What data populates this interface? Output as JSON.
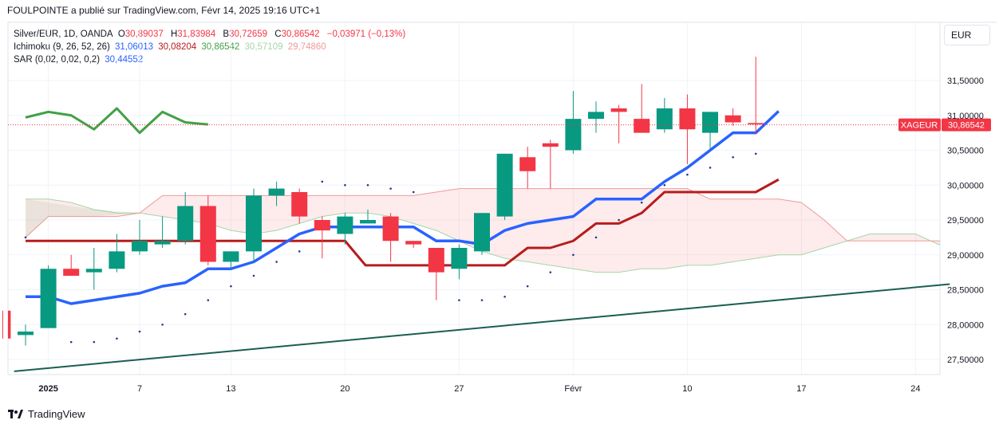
{
  "header": {
    "text": "FOULPOINTE a publié sur TradingView.com, Févr 14, 2025 19:16 UTC+1"
  },
  "legend": {
    "symbol": "Silver/EUR, 1D, OANDA",
    "o_label": "O",
    "o": "30,89037",
    "h_label": "H",
    "h": "31,83984",
    "b_label": "B",
    "b": "30,72659",
    "c_label": "C",
    "c": "30,86542",
    "change": "−0,03971 (−0,13%)",
    "ichimoku_label": "Ichimoku (9, 26, 52, 26)",
    "ichimoku_values": [
      "31,06013",
      "30,08204",
      "30,86542",
      "30,57109",
      "29,74860"
    ],
    "sar_label": "SAR (0,02, 0,02, 0,2)",
    "sar_value": "30,44552"
  },
  "currency": "EUR",
  "brand": "TradingView",
  "colors": {
    "up": "#089981",
    "down": "#f23645",
    "tenkan": "#2962ff",
    "kijun": "#b71c1c",
    "chikou": "#43a047",
    "span_a": "#a5d6a7",
    "span_b": "#ef9a9a",
    "trendline": "#1b5e50",
    "sar": "#1e3a8a"
  },
  "chart_data": {
    "type": "candlestick",
    "symbol": "Silver/EUR",
    "interval": "1D",
    "y_ticks": [
      "27,50000",
      "28,00000",
      "28,50000",
      "29,00000",
      "29,50000",
      "30,00000",
      "30,50000",
      "31,00000",
      "31,50000"
    ],
    "y_tick_values": [
      27.5,
      28.0,
      28.5,
      29.0,
      29.5,
      30.0,
      30.5,
      31.0,
      31.5
    ],
    "x_ticks": [
      {
        "label": "2025",
        "i": 1
      },
      {
        "label": "7",
        "i": 5
      },
      {
        "label": "13",
        "i": 9
      },
      {
        "label": "20",
        "i": 14
      },
      {
        "label": "27",
        "i": 19
      },
      {
        "label": "Févr",
        "i": 24
      },
      {
        "label": "10",
        "i": 29
      },
      {
        "label": "17",
        "i": 34
      },
      {
        "label": "24",
        "i": 39
      }
    ],
    "ylim": [
      27.25,
      32.0
    ],
    "last_price_label": "XAGEUR",
    "last_price": "30,86542",
    "last_price_value": 30.865,
    "candles": [
      {
        "o": 28.2,
        "h": 28.2,
        "l": 27.8,
        "c": 27.8
      },
      {
        "o": 27.85,
        "h": 28.0,
        "l": 27.7,
        "c": 27.9
      },
      {
        "o": 27.95,
        "h": 28.85,
        "l": 27.95,
        "c": 28.8
      },
      {
        "o": 28.8,
        "h": 29.0,
        "l": 28.7,
        "c": 28.7
      },
      {
        "o": 28.75,
        "h": 29.1,
        "l": 28.5,
        "c": 28.8
      },
      {
        "o": 28.8,
        "h": 29.3,
        "l": 28.75,
        "c": 29.05
      },
      {
        "o": 29.05,
        "h": 29.5,
        "l": 29.0,
        "c": 29.2
      },
      {
        "o": 29.15,
        "h": 29.55,
        "l": 29.1,
        "c": 29.2
      },
      {
        "o": 29.2,
        "h": 29.9,
        "l": 29.15,
        "c": 29.7
      },
      {
        "o": 29.7,
        "h": 29.85,
        "l": 28.85,
        "c": 28.9
      },
      {
        "o": 28.9,
        "h": 29.05,
        "l": 28.8,
        "c": 29.05
      },
      {
        "o": 29.05,
        "h": 29.95,
        "l": 28.9,
        "c": 29.85
      },
      {
        "o": 29.85,
        "h": 30.05,
        "l": 29.7,
        "c": 29.95
      },
      {
        "o": 29.9,
        "h": 29.95,
        "l": 29.45,
        "c": 29.55
      },
      {
        "o": 29.5,
        "h": 29.55,
        "l": 28.95,
        "c": 29.35
      },
      {
        "o": 29.3,
        "h": 29.6,
        "l": 29.15,
        "c": 29.55
      },
      {
        "o": 29.45,
        "h": 29.65,
        "l": 29.45,
        "c": 29.5
      },
      {
        "o": 29.55,
        "h": 29.6,
        "l": 28.9,
        "c": 29.2
      },
      {
        "o": 29.2,
        "h": 29.2,
        "l": 29.1,
        "c": 29.15
      },
      {
        "o": 29.1,
        "h": 29.1,
        "l": 28.35,
        "c": 28.75
      },
      {
        "o": 28.8,
        "h": 29.15,
        "l": 28.65,
        "c": 29.1
      },
      {
        "o": 29.05,
        "h": 29.6,
        "l": 29.0,
        "c": 29.6
      },
      {
        "o": 29.55,
        "h": 30.45,
        "l": 29.5,
        "c": 30.45
      },
      {
        "o": 30.4,
        "h": 30.55,
        "l": 29.95,
        "c": 30.2
      },
      {
        "o": 30.6,
        "h": 30.65,
        "l": 29.95,
        "c": 30.55
      },
      {
        "o": 30.5,
        "h": 31.35,
        "l": 30.45,
        "c": 30.95
      },
      {
        "o": 30.95,
        "h": 31.2,
        "l": 30.75,
        "c": 31.05
      },
      {
        "o": 31.1,
        "h": 31.15,
        "l": 30.6,
        "c": 31.05
      },
      {
        "o": 30.95,
        "h": 31.45,
        "l": 30.75,
        "c": 30.75
      },
      {
        "o": 30.8,
        "h": 31.25,
        "l": 30.75,
        "c": 31.1
      },
      {
        "o": 31.1,
        "h": 31.3,
        "l": 30.3,
        "c": 30.8
      },
      {
        "o": 30.75,
        "h": 31.05,
        "l": 30.5,
        "c": 31.05
      },
      {
        "o": 31.0,
        "h": 31.1,
        "l": 30.85,
        "c": 30.9
      },
      {
        "o": 30.89,
        "h": 31.84,
        "l": 30.73,
        "c": 30.87
      }
    ],
    "tenkan": [
      [
        0,
        28.4
      ],
      [
        1,
        28.4
      ],
      [
        2,
        28.3
      ],
      [
        3,
        28.35
      ],
      [
        4,
        28.4
      ],
      [
        5,
        28.45
      ],
      [
        6,
        28.55
      ],
      [
        7,
        28.6
      ],
      [
        8,
        28.8
      ],
      [
        9,
        28.8
      ],
      [
        10,
        28.9
      ],
      [
        11,
        29.1
      ],
      [
        12,
        29.3
      ],
      [
        13,
        29.4
      ],
      [
        14,
        29.4
      ],
      [
        15,
        29.4
      ],
      [
        16,
        29.4
      ],
      [
        17,
        29.4
      ],
      [
        18,
        29.2
      ],
      [
        19,
        29.2
      ],
      [
        20,
        29.15
      ],
      [
        21,
        29.35
      ],
      [
        22,
        29.45
      ],
      [
        23,
        29.5
      ],
      [
        24,
        29.55
      ],
      [
        25,
        29.8
      ],
      [
        26,
        29.8
      ],
      [
        27,
        29.8
      ],
      [
        28,
        30.05
      ],
      [
        29,
        30.25
      ],
      [
        30,
        30.5
      ],
      [
        31,
        30.75
      ],
      [
        32,
        30.75
      ],
      [
        33,
        31.06
      ]
    ],
    "kijun": [
      [
        0,
        29.2
      ],
      [
        1,
        29.2
      ],
      [
        2,
        29.2
      ],
      [
        3,
        29.2
      ],
      [
        4,
        29.2
      ],
      [
        5,
        29.2
      ],
      [
        6,
        29.2
      ],
      [
        7,
        29.2
      ],
      [
        8,
        29.2
      ],
      [
        9,
        29.2
      ],
      [
        10,
        29.2
      ],
      [
        11,
        29.2
      ],
      [
        12,
        29.2
      ],
      [
        13,
        29.2
      ],
      [
        14,
        29.2
      ],
      [
        14.9,
        28.85
      ],
      [
        15,
        28.85
      ],
      [
        16,
        28.85
      ],
      [
        17,
        28.85
      ],
      [
        18,
        28.85
      ],
      [
        19,
        28.85
      ],
      [
        20,
        28.85
      ],
      [
        21,
        28.85
      ],
      [
        22,
        29.1
      ],
      [
        23,
        29.1
      ],
      [
        24,
        29.2
      ],
      [
        25,
        29.45
      ],
      [
        26,
        29.45
      ],
      [
        27,
        29.6
      ],
      [
        28,
        29.9
      ],
      [
        29,
        29.9
      ],
      [
        30,
        29.9
      ],
      [
        31,
        29.9
      ],
      [
        32,
        29.9
      ],
      [
        33,
        30.08
      ]
    ],
    "chikou": [
      [
        0,
        30.97
      ],
      [
        1,
        31.05
      ],
      [
        2,
        31.0
      ],
      [
        3,
        30.8
      ],
      [
        4,
        31.1
      ],
      [
        5,
        30.75
      ],
      [
        6,
        31.05
      ],
      [
        7,
        30.9
      ],
      [
        8,
        30.87
      ]
    ],
    "span_a": [
      [
        0,
        29.8
      ],
      [
        1,
        29.8
      ],
      [
        2,
        29.75
      ],
      [
        3,
        29.65
      ],
      [
        4,
        29.6
      ],
      [
        5,
        29.6
      ],
      [
        6,
        29.55
      ],
      [
        7,
        29.5
      ],
      [
        8,
        29.45
      ],
      [
        9,
        29.35
      ],
      [
        10,
        29.3
      ],
      [
        11,
        29.35
      ],
      [
        12,
        29.45
      ],
      [
        13,
        29.55
      ],
      [
        14,
        29.6
      ],
      [
        15,
        29.6
      ],
      [
        16,
        29.55
      ],
      [
        17,
        29.45
      ],
      [
        18,
        29.35
      ],
      [
        19,
        29.2
      ],
      [
        20,
        29.05
      ],
      [
        21,
        28.95
      ],
      [
        22,
        28.9
      ],
      [
        23,
        28.85
      ],
      [
        24,
        28.8
      ],
      [
        25,
        28.75
      ],
      [
        26,
        28.75
      ],
      [
        27,
        28.8
      ],
      [
        28,
        28.8
      ],
      [
        29,
        28.85
      ],
      [
        30,
        28.85
      ],
      [
        31,
        28.9
      ],
      [
        32,
        28.95
      ],
      [
        33,
        29.0
      ],
      [
        34,
        29.0
      ],
      [
        35,
        29.1
      ],
      [
        36,
        29.2
      ],
      [
        37,
        29.3
      ],
      [
        38,
        29.3
      ],
      [
        39,
        29.3
      ],
      [
        40,
        29.15
      ],
      [
        41,
        29.15
      ]
    ],
    "span_b": [
      [
        0,
        29.25
      ],
      [
        1,
        29.55
      ],
      [
        2,
        29.55
      ],
      [
        3,
        29.55
      ],
      [
        4,
        29.55
      ],
      [
        5,
        29.6
      ],
      [
        6,
        29.85
      ],
      [
        7,
        29.85
      ],
      [
        8,
        29.85
      ],
      [
        9,
        29.85
      ],
      [
        10,
        29.85
      ],
      [
        11,
        29.85
      ],
      [
        12,
        29.85
      ],
      [
        13,
        29.85
      ],
      [
        14,
        29.85
      ],
      [
        15,
        29.85
      ],
      [
        16,
        29.85
      ],
      [
        17,
        29.85
      ],
      [
        18,
        29.9
      ],
      [
        19,
        29.95
      ],
      [
        20,
        29.95
      ],
      [
        21,
        29.95
      ],
      [
        22,
        29.95
      ],
      [
        23,
        29.95
      ],
      [
        24,
        29.95
      ],
      [
        25,
        29.95
      ],
      [
        26,
        29.95
      ],
      [
        27,
        29.95
      ],
      [
        28,
        29.95
      ],
      [
        29,
        29.95
      ],
      [
        30,
        29.8
      ],
      [
        31,
        29.8
      ],
      [
        32,
        29.8
      ],
      [
        33,
        29.8
      ],
      [
        34,
        29.75
      ],
      [
        35,
        29.5
      ],
      [
        36,
        29.2
      ],
      [
        37,
        29.2
      ],
      [
        38,
        29.2
      ],
      [
        39,
        29.2
      ],
      [
        40,
        29.2
      ],
      [
        41,
        29.2
      ]
    ],
    "sar": [
      [
        0,
        29.25
      ],
      [
        2,
        27.75
      ],
      [
        3,
        27.75
      ],
      [
        4,
        27.8
      ],
      [
        5,
        27.9
      ],
      [
        6,
        28.0
      ],
      [
        7,
        28.15
      ],
      [
        8,
        28.35
      ],
      [
        9,
        28.55
      ],
      [
        10,
        28.7
      ],
      [
        11,
        28.9
      ],
      [
        12,
        29.05
      ],
      [
        13,
        30.05
      ],
      [
        14,
        30.0
      ],
      [
        15,
        30.0
      ],
      [
        16,
        29.95
      ],
      [
        17,
        29.9
      ],
      [
        19,
        28.35
      ],
      [
        20,
        28.35
      ],
      [
        21,
        28.4
      ],
      [
        22,
        28.55
      ],
      [
        23,
        28.75
      ],
      [
        24,
        29.0
      ],
      [
        25,
        29.25
      ],
      [
        26,
        29.5
      ],
      [
        27,
        29.75
      ],
      [
        28,
        30.0
      ],
      [
        29,
        30.15
      ],
      [
        30,
        30.25
      ],
      [
        31,
        30.4
      ],
      [
        32,
        30.45
      ]
    ],
    "trendline": {
      "from": [
        -0.5,
        27.33
      ],
      "to": [
        40.5,
        28.58
      ]
    }
  }
}
